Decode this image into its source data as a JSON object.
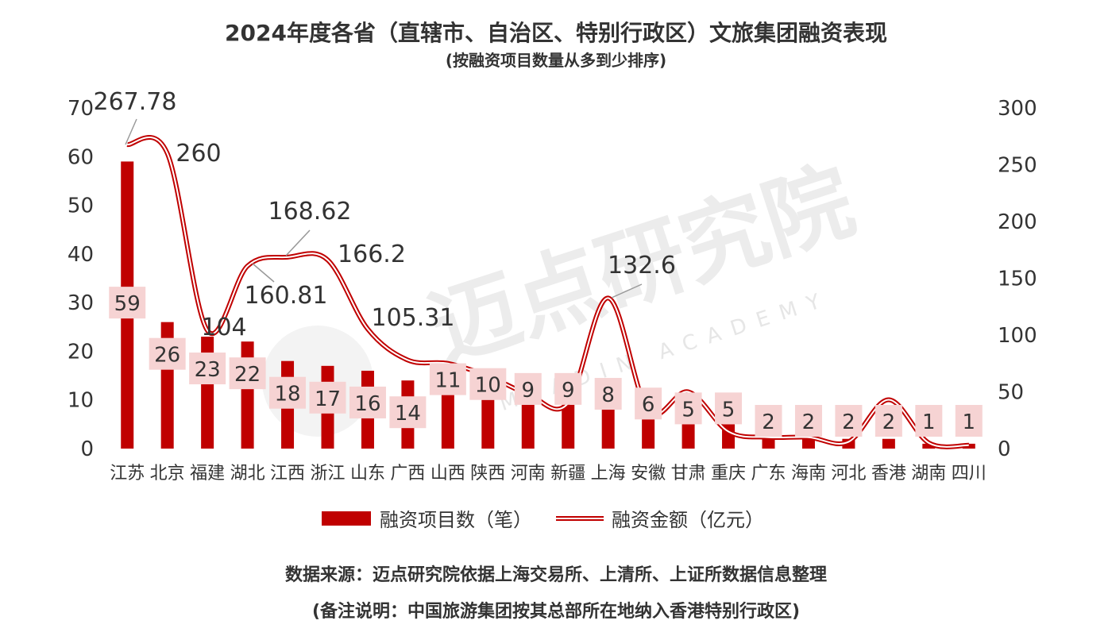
{
  "title": "2024年度各省（直辖市、自治区、特别行政区）文旅集团融资表现",
  "subtitle": "(按融资项目数量从多到少排序)",
  "watermark": {
    "cn": "迈点研究院",
    "en": "MEADIN ACADEMY"
  },
  "source_note": "数据来源：迈点研究院依据上海交易所、上清所、上证所数据信息整理",
  "remark_note": "(备注说明：中国旅游集团按其总部所在地纳入香港特别行政区)",
  "colors": {
    "bar": "#c00000",
    "label_bg": "#f6d3d3",
    "text": "#333333",
    "line_outer": "#c00000",
    "line_inner": "#ffffff"
  },
  "chart_data": {
    "type": "bar",
    "categories": [
      "江苏",
      "北京",
      "福建",
      "湖北",
      "江西",
      "浙江",
      "山东",
      "广西",
      "山西",
      "陕西",
      "河南",
      "新疆",
      "上海",
      "安徽",
      "甘肃",
      "重庆",
      "广东",
      "海南",
      "河北",
      "香港",
      "湖南",
      "四川"
    ],
    "series": [
      {
        "name": "融资项目数（笔）",
        "type": "bar",
        "axis": "left",
        "values": [
          59,
          26,
          23,
          22,
          18,
          17,
          16,
          14,
          11,
          10,
          9,
          9,
          8,
          6,
          5,
          5,
          2,
          2,
          2,
          2,
          1,
          1
        ]
      },
      {
        "name": "融资金额（亿元）",
        "type": "line",
        "axis": "right",
        "values": [
          267.78,
          260,
          104,
          160.81,
          168.62,
          166.2,
          105.31,
          78,
          75,
          64,
          48,
          40,
          132.6,
          33,
          50,
          15,
          10,
          10,
          6,
          43,
          5,
          3
        ]
      }
    ],
    "amount_labels": [
      {
        "index": 0,
        "text": "267.78"
      },
      {
        "index": 1,
        "text": "260"
      },
      {
        "index": 2,
        "text": "104"
      },
      {
        "index": 3,
        "text": "160.81"
      },
      {
        "index": 4,
        "text": "168.62"
      },
      {
        "index": 5,
        "text": "166.2"
      },
      {
        "index": 6,
        "text": "105.31"
      },
      {
        "index": 12,
        "text": "132.6"
      }
    ],
    "y_left": {
      "min": 0,
      "max": 70,
      "step": 10
    },
    "y_right": {
      "min": 0,
      "max": 300,
      "step": 50
    },
    "legend_position": "bottom",
    "grid": false
  }
}
